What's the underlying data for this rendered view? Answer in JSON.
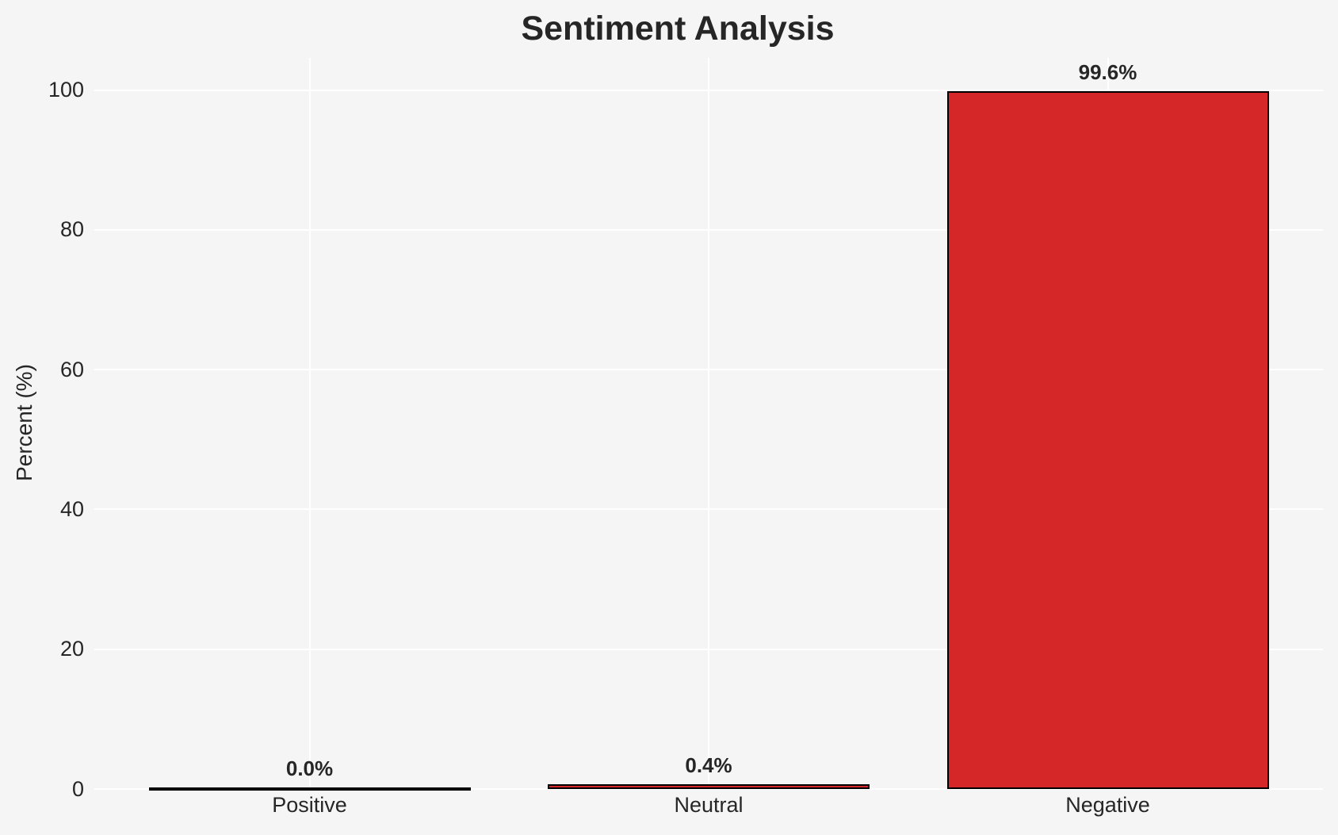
{
  "chart_data": {
    "type": "bar",
    "title": "Sentiment Analysis",
    "categories": [
      "Positive",
      "Neutral",
      "Negative"
    ],
    "values": [
      0.0,
      0.4,
      99.6
    ],
    "value_labels": [
      "0.0%",
      "0.4%",
      "99.6%"
    ],
    "xlabel": "",
    "ylabel": "Percent (%)",
    "ylim": [
      0,
      104.6
    ],
    "yticks": [
      0,
      20,
      40,
      60,
      80,
      100
    ],
    "grid": true,
    "legend": false,
    "colors": {
      "bar_fill": "#d62728",
      "bar_edge": "#000000",
      "background": "#f5f5f5",
      "gridline": "#ffffff",
      "text": "#262626"
    }
  }
}
